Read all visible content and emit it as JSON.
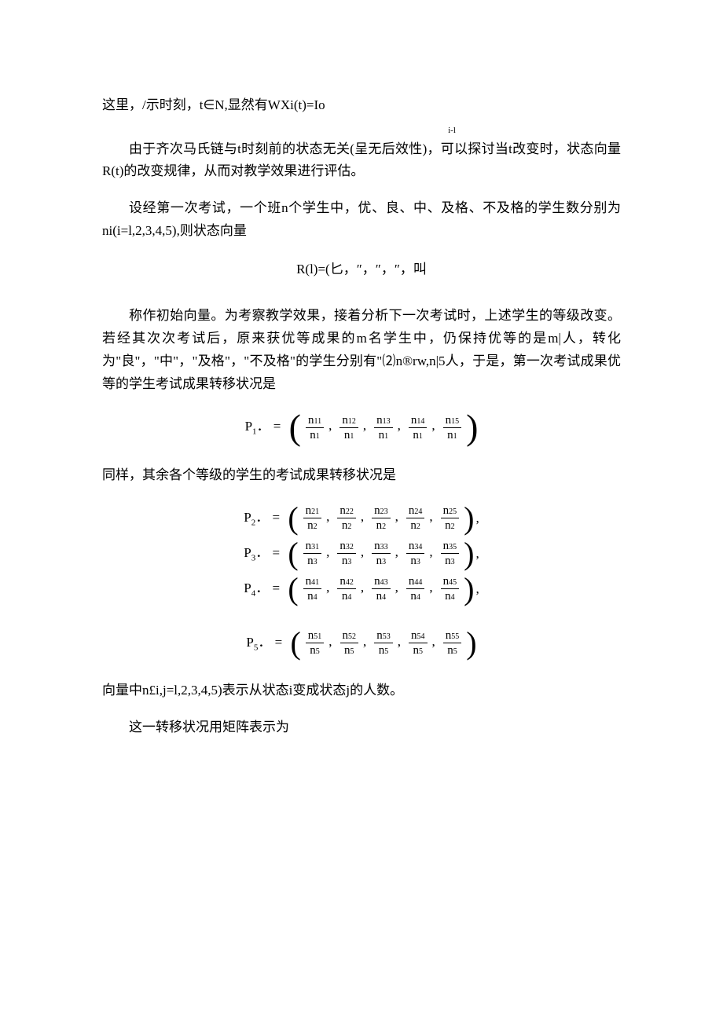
{
  "line1": "这里，/示时刻，t∈N,显然有WXi(t)=Io",
  "line1_sub": "i-l",
  "para1": "由于齐次马氏链与t时刻前的状态无关(呈无后效性)，可以探讨当t改变时，状态向量R(t)的改变规律，从而对教学效果进行评估。",
  "para2": "设经第一次考试，一个班n个学生中，优、良、中、及格、不及格的学生数分别为ni(i=l,2,3,4,5),则状态向量",
  "eq_r": "R(l)=(匕，″，″，″，叫",
  "para3": "称作初始向量。为考察教学效果，接着分析下一次考试时，上述学生的等级改变。若经其次次考试后，原来获优等成果的m名学生中，仍保持优等的是m|人，转化为\"良\"，\"中\"，\"及格\"，\"不及格\"的学生分别有\"⑵n®rw,n|5人，于是，第一次考试成果优等的学生考试成果转移状况是",
  "para4": "同样，其余各个等级的学生的考试成果转移状况是",
  "para5": "向量中n£i,j=l,2,3,4,5)表示从状态i变成状态j的人数。",
  "para6": "这一转移状况用矩阵表示为",
  "P": [
    {
      "label": "P",
      "sub": "1",
      "den": "1",
      "nums": [
        "11",
        "12",
        "13",
        "14",
        "15"
      ],
      "trail": ""
    },
    {
      "label": "P",
      "sub": "2",
      "den": "2",
      "nums": [
        "21",
        "22",
        "23",
        "24",
        "25"
      ],
      "trail": ","
    },
    {
      "label": "P",
      "sub": "3",
      "den": "3",
      "nums": [
        "31",
        "32",
        "33",
        "34",
        "35"
      ],
      "trail": ","
    },
    {
      "label": "P",
      "sub": "4",
      "den": "4",
      "nums": [
        "41",
        "42",
        "43",
        "44",
        "45"
      ],
      "trail": ","
    },
    {
      "label": "P",
      "sub": "5",
      "den": "5",
      "nums": [
        "51",
        "52",
        "53",
        "54",
        "55"
      ],
      "trail": ""
    }
  ],
  "colors": {
    "bg": "#ffffff",
    "text": "#000000"
  },
  "fonts": {
    "body": "SimSun",
    "math": "Times New Roman",
    "body_size": 17,
    "math_size": 15
  }
}
